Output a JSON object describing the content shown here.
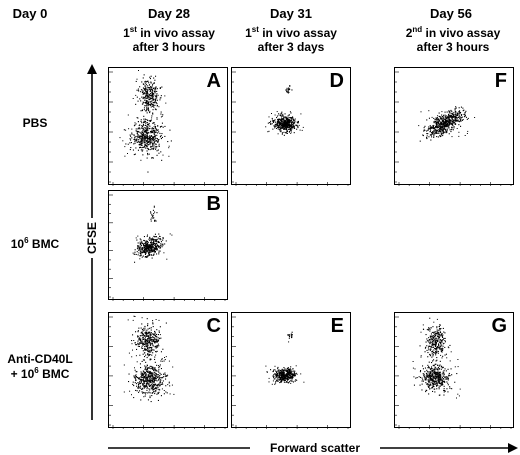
{
  "columns": {
    "day0": "Day 0",
    "day28": "Day 28",
    "day31": "Day 31",
    "day56": "Day 56"
  },
  "subheaders": {
    "day28": {
      "sup": "st",
      "prefix": "1",
      "rest": " in vivo assay",
      "line2": "after 3 hours"
    },
    "day31": {
      "sup": "st",
      "prefix": "1",
      "rest": " in vivo assay",
      "line2": "after 3 days"
    },
    "day56": {
      "sup": "nd",
      "prefix": "2",
      "rest": " in vivo assay",
      "line2": "after 3 hours"
    }
  },
  "rows": {
    "pbs": "PBS",
    "bmc": {
      "prefix": "10",
      "sup": "6",
      "rest": " BMC"
    },
    "anti": {
      "line1": "Anti-CD40L",
      "line2_prefix": "+ 10",
      "line2_sup": "6",
      "line2_rest": " BMC"
    }
  },
  "panels": {
    "A": "A",
    "B": "B",
    "C": "C",
    "D": "D",
    "E": "E",
    "F": "F",
    "G": "G"
  },
  "axes": {
    "y_label": "CFSE",
    "x_label": "Forward scatter"
  }
}
